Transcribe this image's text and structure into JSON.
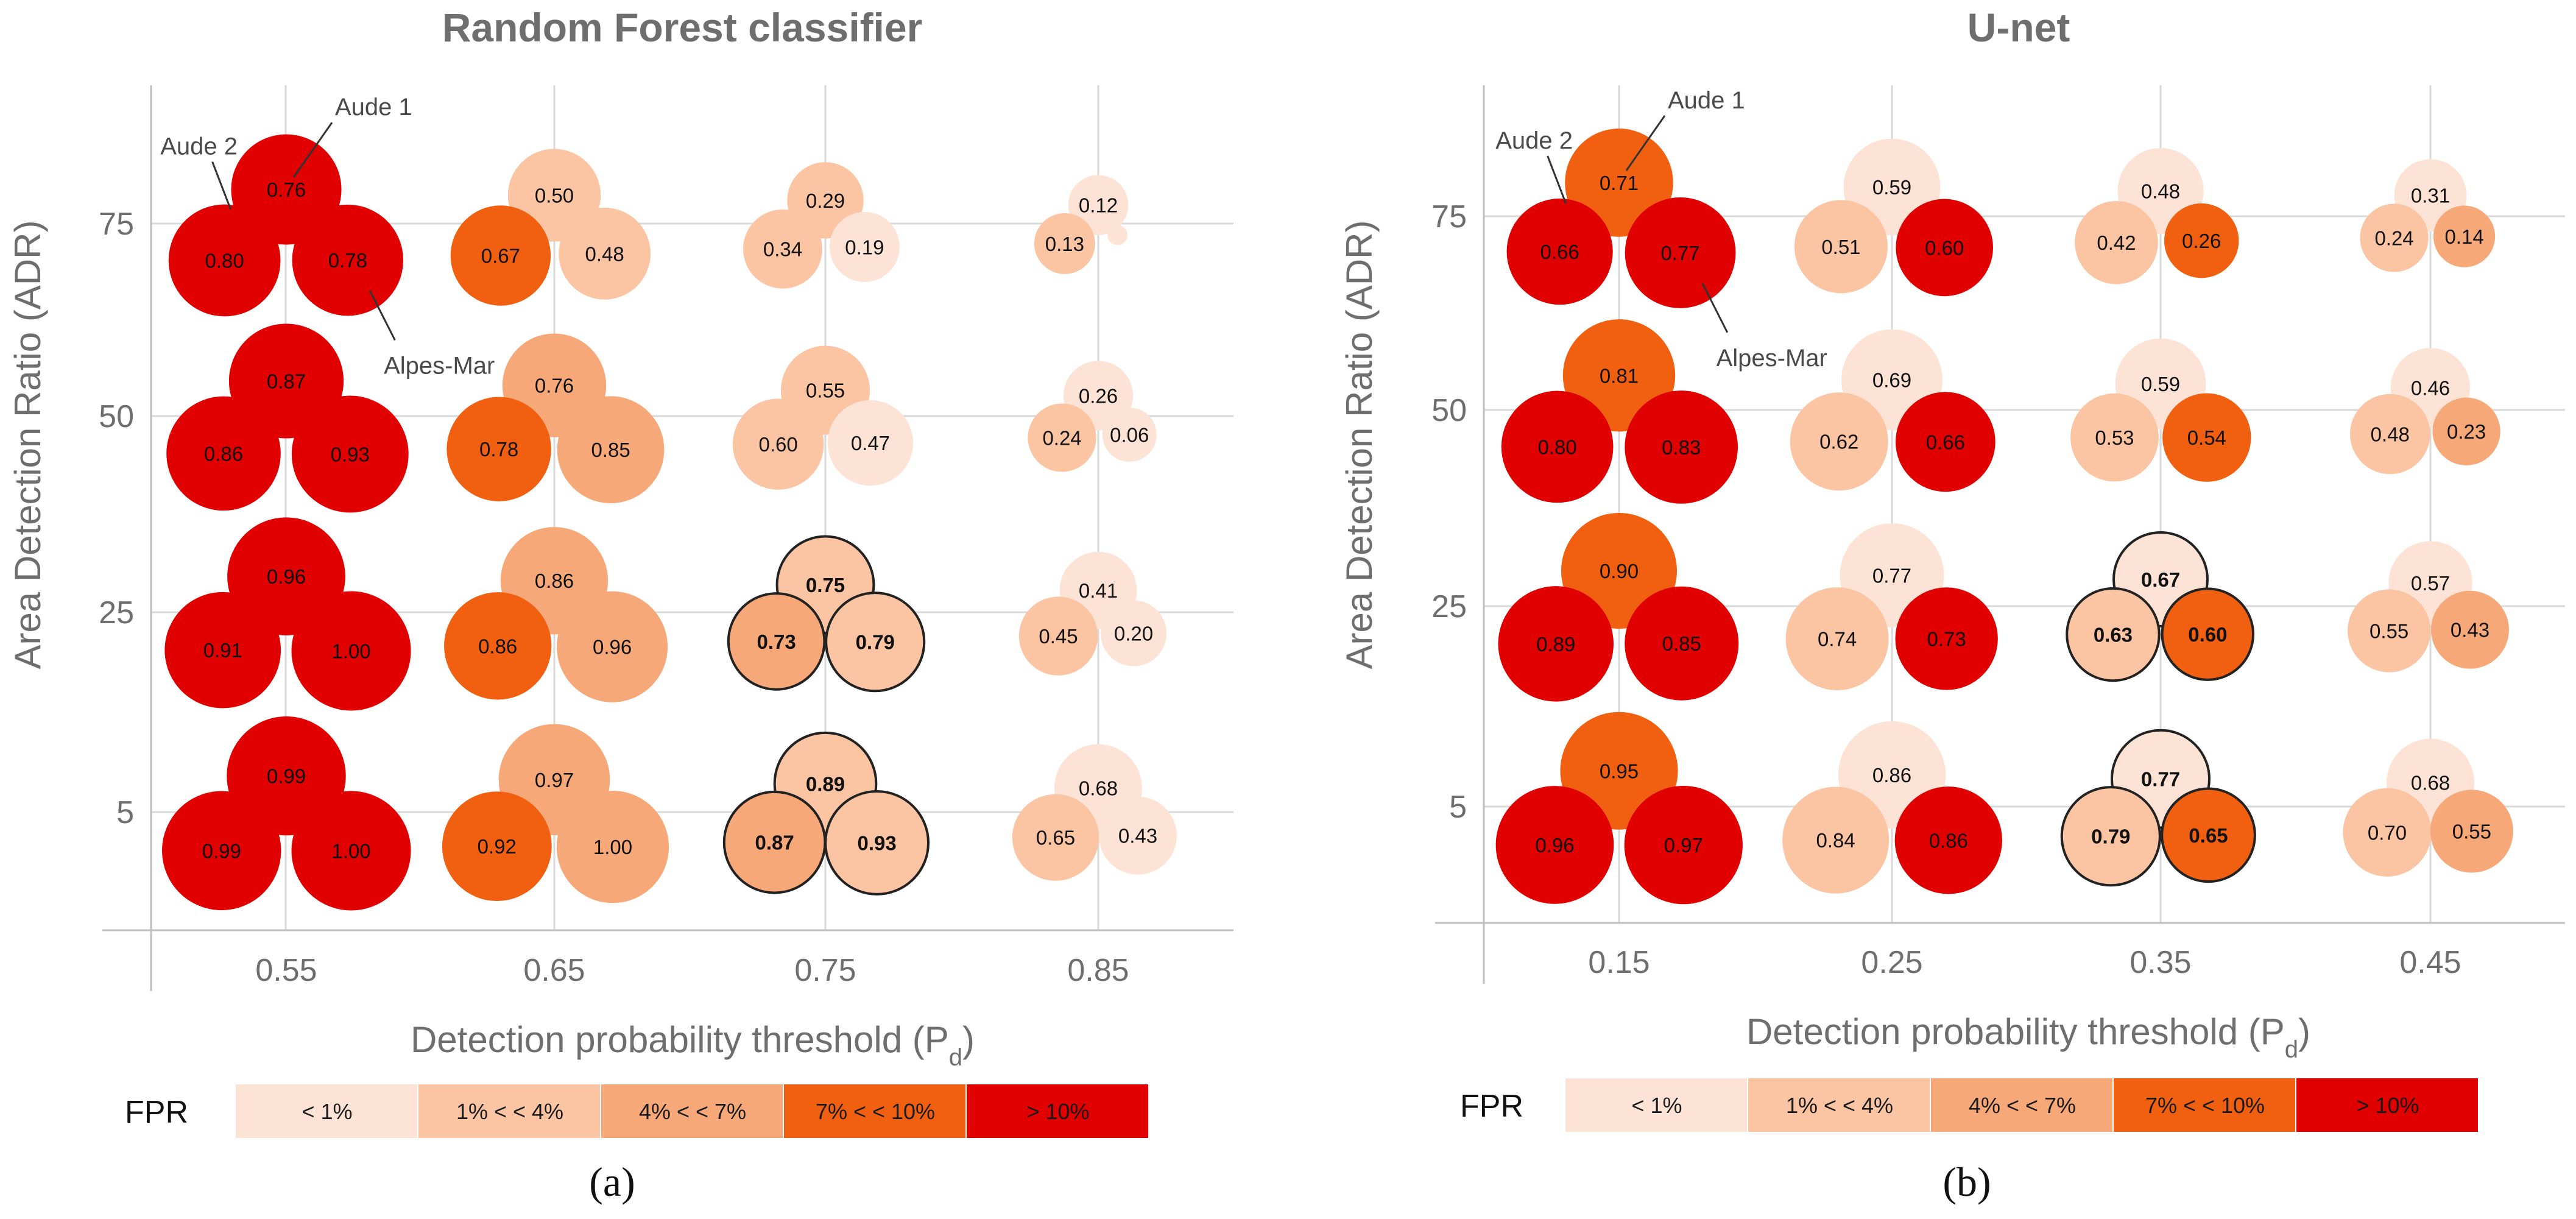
{
  "colors": {
    "lt1": "#fde3d5",
    "b1_4": "#fbc4a3",
    "b4_7": "#f7a879",
    "b7_10": "#f06010",
    "gt10": "#e00000"
  },
  "chart_data": [
    {
      "type": "bubble",
      "panel": "(a)",
      "title": "Random Forest classifier",
      "xlabel": "Detection probability threshold (P",
      "xlabel_sub": "d",
      "xlabel_close": ")",
      "ylabel": "Area Detection Ratio (ADR)",
      "x_ticks": [
        "0.55",
        "0.65",
        "0.75",
        "0.85"
      ],
      "y_ticks": [
        "75",
        "50",
        "25",
        "5"
      ],
      "sites": [
        "Aude 1",
        "Aude 2",
        "Alpes-Mar"
      ],
      "annotations": [
        "Aude 1",
        "Aude 2",
        "Alpes-Mar"
      ],
      "points": [
        {
          "pd": "0.55",
          "adr": "75",
          "site": "Aude 1",
          "value": "0.76",
          "fpr": "gt10",
          "circled": false
        },
        {
          "pd": "0.55",
          "adr": "75",
          "site": "Aude 2",
          "value": "0.80",
          "fpr": "gt10",
          "circled": false
        },
        {
          "pd": "0.55",
          "adr": "75",
          "site": "Alpes-Mar",
          "value": "0.78",
          "fpr": "gt10",
          "circled": false
        },
        {
          "pd": "0.55",
          "adr": "50",
          "site": "Aude 1",
          "value": "0.87",
          "fpr": "gt10",
          "circled": false
        },
        {
          "pd": "0.55",
          "adr": "50",
          "site": "Aude 2",
          "value": "0.86",
          "fpr": "gt10",
          "circled": false
        },
        {
          "pd": "0.55",
          "adr": "50",
          "site": "Alpes-Mar",
          "value": "0.93",
          "fpr": "gt10",
          "circled": false
        },
        {
          "pd": "0.55",
          "adr": "25",
          "site": "Aude 1",
          "value": "0.96",
          "fpr": "gt10",
          "circled": false
        },
        {
          "pd": "0.55",
          "adr": "25",
          "site": "Aude 2",
          "value": "0.91",
          "fpr": "gt10",
          "circled": false
        },
        {
          "pd": "0.55",
          "adr": "25",
          "site": "Alpes-Mar",
          "value": "1.00",
          "fpr": "gt10",
          "circled": false
        },
        {
          "pd": "0.55",
          "adr": "5",
          "site": "Aude 1",
          "value": "0.99",
          "fpr": "gt10",
          "circled": false
        },
        {
          "pd": "0.55",
          "adr": "5",
          "site": "Aude 2",
          "value": "0.99",
          "fpr": "gt10",
          "circled": false
        },
        {
          "pd": "0.55",
          "adr": "5",
          "site": "Alpes-Mar",
          "value": "1.00",
          "fpr": "gt10",
          "circled": false
        },
        {
          "pd": "0.65",
          "adr": "75",
          "site": "Aude 1",
          "value": "0.50",
          "fpr": "b1_4",
          "circled": false
        },
        {
          "pd": "0.65",
          "adr": "75",
          "site": "Aude 2",
          "value": "0.67",
          "fpr": "b7_10",
          "circled": false
        },
        {
          "pd": "0.65",
          "adr": "75",
          "site": "Alpes-Mar",
          "value": "0.48",
          "fpr": "b1_4",
          "circled": false
        },
        {
          "pd": "0.65",
          "adr": "50",
          "site": "Aude 1",
          "value": "0.76",
          "fpr": "b4_7",
          "circled": false
        },
        {
          "pd": "0.65",
          "adr": "50",
          "site": "Aude 2",
          "value": "0.78",
          "fpr": "b7_10",
          "circled": false
        },
        {
          "pd": "0.65",
          "adr": "50",
          "site": "Alpes-Mar",
          "value": "0.85",
          "fpr": "b4_7",
          "circled": false
        },
        {
          "pd": "0.65",
          "adr": "25",
          "site": "Aude 1",
          "value": "0.86",
          "fpr": "b4_7",
          "circled": false
        },
        {
          "pd": "0.65",
          "adr": "25",
          "site": "Aude 2",
          "value": "0.86",
          "fpr": "b7_10",
          "circled": false
        },
        {
          "pd": "0.65",
          "adr": "25",
          "site": "Alpes-Mar",
          "value": "0.96",
          "fpr": "b4_7",
          "circled": false
        },
        {
          "pd": "0.65",
          "adr": "5",
          "site": "Aude 1",
          "value": "0.97",
          "fpr": "b4_7",
          "circled": false
        },
        {
          "pd": "0.65",
          "adr": "5",
          "site": "Aude 2",
          "value": "0.92",
          "fpr": "b7_10",
          "circled": false
        },
        {
          "pd": "0.65",
          "adr": "5",
          "site": "Alpes-Mar",
          "value": "1.00",
          "fpr": "b4_7",
          "circled": false
        },
        {
          "pd": "0.75",
          "adr": "75",
          "site": "Aude 1",
          "value": "0.29",
          "fpr": "b1_4",
          "circled": false
        },
        {
          "pd": "0.75",
          "adr": "75",
          "site": "Aude 2",
          "value": "0.34",
          "fpr": "b1_4",
          "circled": false
        },
        {
          "pd": "0.75",
          "adr": "75",
          "site": "Alpes-Mar",
          "value": "0.19",
          "fpr": "lt1",
          "circled": false
        },
        {
          "pd": "0.75",
          "adr": "50",
          "site": "Aude 1",
          "value": "0.55",
          "fpr": "b1_4",
          "circled": false
        },
        {
          "pd": "0.75",
          "adr": "50",
          "site": "Aude 2",
          "value": "0.60",
          "fpr": "b1_4",
          "circled": false
        },
        {
          "pd": "0.75",
          "adr": "50",
          "site": "Alpes-Mar",
          "value": "0.47",
          "fpr": "lt1",
          "circled": false
        },
        {
          "pd": "0.75",
          "adr": "25",
          "site": "Aude 1",
          "value": "0.75",
          "fpr": "b1_4",
          "circled": true
        },
        {
          "pd": "0.75",
          "adr": "25",
          "site": "Aude 2",
          "value": "0.73",
          "fpr": "b4_7",
          "circled": true
        },
        {
          "pd": "0.75",
          "adr": "25",
          "site": "Alpes-Mar",
          "value": "0.79",
          "fpr": "b1_4",
          "circled": true
        },
        {
          "pd": "0.75",
          "adr": "5",
          "site": "Aude 1",
          "value": "0.89",
          "fpr": "b1_4",
          "circled": true
        },
        {
          "pd": "0.75",
          "adr": "5",
          "site": "Aude 2",
          "value": "0.87",
          "fpr": "b4_7",
          "circled": true
        },
        {
          "pd": "0.75",
          "adr": "5",
          "site": "Alpes-Mar",
          "value": "0.93",
          "fpr": "b1_4",
          "circled": true
        },
        {
          "pd": "0.85",
          "adr": "75",
          "site": "Aude 1",
          "value": "0.12",
          "fpr": "lt1",
          "circled": false
        },
        {
          "pd": "0.85",
          "adr": "75",
          "site": "Aude 2",
          "value": "0.13",
          "fpr": "b1_4",
          "circled": false
        },
        {
          "pd": "0.85",
          "adr": "75",
          "site": "Alpes-Mar",
          "value": "",
          "fpr": "lt1",
          "circled": false
        },
        {
          "pd": "0.85",
          "adr": "50",
          "site": "Aude 1",
          "value": "0.26",
          "fpr": "lt1",
          "circled": false
        },
        {
          "pd": "0.85",
          "adr": "50",
          "site": "Aude 2",
          "value": "0.24",
          "fpr": "b1_4",
          "circled": false
        },
        {
          "pd": "0.85",
          "adr": "50",
          "site": "Alpes-Mar",
          "value": "0.06",
          "fpr": "lt1",
          "circled": false
        },
        {
          "pd": "0.85",
          "adr": "25",
          "site": "Aude 1",
          "value": "0.41",
          "fpr": "lt1",
          "circled": false
        },
        {
          "pd": "0.85",
          "adr": "25",
          "site": "Aude 2",
          "value": "0.45",
          "fpr": "b1_4",
          "circled": false
        },
        {
          "pd": "0.85",
          "adr": "25",
          "site": "Alpes-Mar",
          "value": "0.20",
          "fpr": "lt1",
          "circled": false
        },
        {
          "pd": "0.85",
          "adr": "5",
          "site": "Aude 1",
          "value": "0.68",
          "fpr": "lt1",
          "circled": false
        },
        {
          "pd": "0.85",
          "adr": "5",
          "site": "Aude 2",
          "value": "0.65",
          "fpr": "b1_4",
          "circled": false
        },
        {
          "pd": "0.85",
          "adr": "5",
          "site": "Alpes-Mar",
          "value": "0.43",
          "fpr": "lt1",
          "circled": false
        }
      ],
      "legend": {
        "label": "FPR",
        "items": [
          {
            "key": "lt1",
            "label": "< 1%"
          },
          {
            "key": "b1_4",
            "label": "1% <  < 4%"
          },
          {
            "key": "b4_7",
            "label": "4% <  < 7%"
          },
          {
            "key": "b7_10",
            "label": "7% <  < 10%"
          },
          {
            "key": "gt10",
            "label": "> 10%"
          }
        ]
      }
    },
    {
      "type": "bubble",
      "panel": "(b)",
      "title": "U-net",
      "xlabel": "Detection probability threshold (P",
      "xlabel_sub": "d",
      "xlabel_close": ")",
      "ylabel": "Area Detection Ratio (ADR)",
      "x_ticks": [
        "0.15",
        "0.25",
        "0.35",
        "0.45"
      ],
      "y_ticks": [
        "75",
        "50",
        "25",
        "5"
      ],
      "sites": [
        "Aude 1",
        "Aude 2",
        "Alpes-Mar"
      ],
      "annotations": [
        "Aude 1",
        "Aude 2",
        "Alpes-Mar"
      ],
      "points": [
        {
          "pd": "0.15",
          "adr": "75",
          "site": "Aude 1",
          "value": "0.71",
          "fpr": "b7_10",
          "circled": false
        },
        {
          "pd": "0.15",
          "adr": "75",
          "site": "Aude 2",
          "value": "0.66",
          "fpr": "gt10",
          "circled": false
        },
        {
          "pd": "0.15",
          "adr": "75",
          "site": "Alpes-Mar",
          "value": "0.77",
          "fpr": "gt10",
          "circled": false
        },
        {
          "pd": "0.15",
          "adr": "50",
          "site": "Aude 1",
          "value": "0.81",
          "fpr": "b7_10",
          "circled": false
        },
        {
          "pd": "0.15",
          "adr": "50",
          "site": "Aude 2",
          "value": "0.80",
          "fpr": "gt10",
          "circled": false
        },
        {
          "pd": "0.15",
          "adr": "50",
          "site": "Alpes-Mar",
          "value": "0.83",
          "fpr": "gt10",
          "circled": false
        },
        {
          "pd": "0.15",
          "adr": "25",
          "site": "Aude 1",
          "value": "0.90",
          "fpr": "b7_10",
          "circled": false
        },
        {
          "pd": "0.15",
          "adr": "25",
          "site": "Aude 2",
          "value": "0.89",
          "fpr": "gt10",
          "circled": false
        },
        {
          "pd": "0.15",
          "adr": "25",
          "site": "Alpes-Mar",
          "value": "0.85",
          "fpr": "gt10",
          "circled": false
        },
        {
          "pd": "0.15",
          "adr": "5",
          "site": "Aude 1",
          "value": "0.95",
          "fpr": "b7_10",
          "circled": false
        },
        {
          "pd": "0.15",
          "adr": "5",
          "site": "Aude 2",
          "value": "0.96",
          "fpr": "gt10",
          "circled": false
        },
        {
          "pd": "0.15",
          "adr": "5",
          "site": "Alpes-Mar",
          "value": "0.97",
          "fpr": "gt10",
          "circled": false
        },
        {
          "pd": "0.25",
          "adr": "75",
          "site": "Aude 1",
          "value": "0.59",
          "fpr": "lt1",
          "circled": false
        },
        {
          "pd": "0.25",
          "adr": "75",
          "site": "Aude 2",
          "value": "0.51",
          "fpr": "b1_4",
          "circled": false
        },
        {
          "pd": "0.25",
          "adr": "75",
          "site": "Alpes-Mar",
          "value": "0.60",
          "fpr": "gt10",
          "circled": false
        },
        {
          "pd": "0.25",
          "adr": "50",
          "site": "Aude 1",
          "value": "0.69",
          "fpr": "lt1",
          "circled": false
        },
        {
          "pd": "0.25",
          "adr": "50",
          "site": "Aude 2",
          "value": "0.62",
          "fpr": "b1_4",
          "circled": false
        },
        {
          "pd": "0.25",
          "adr": "50",
          "site": "Alpes-Mar",
          "value": "0.66",
          "fpr": "gt10",
          "circled": false
        },
        {
          "pd": "0.25",
          "adr": "25",
          "site": "Aude 1",
          "value": "0.77",
          "fpr": "lt1",
          "circled": false
        },
        {
          "pd": "0.25",
          "adr": "25",
          "site": "Aude 2",
          "value": "0.74",
          "fpr": "b1_4",
          "circled": false
        },
        {
          "pd": "0.25",
          "adr": "25",
          "site": "Alpes-Mar",
          "value": "0.73",
          "fpr": "gt10",
          "circled": false
        },
        {
          "pd": "0.25",
          "adr": "5",
          "site": "Aude 1",
          "value": "0.86",
          "fpr": "lt1",
          "circled": false
        },
        {
          "pd": "0.25",
          "adr": "5",
          "site": "Aude 2",
          "value": "0.84",
          "fpr": "b1_4",
          "circled": false
        },
        {
          "pd": "0.25",
          "adr": "5",
          "site": "Alpes-Mar",
          "value": "0.86",
          "fpr": "gt10",
          "circled": false
        },
        {
          "pd": "0.35",
          "adr": "75",
          "site": "Aude 1",
          "value": "0.48",
          "fpr": "lt1",
          "circled": false
        },
        {
          "pd": "0.35",
          "adr": "75",
          "site": "Aude 2",
          "value": "0.42",
          "fpr": "b1_4",
          "circled": false
        },
        {
          "pd": "0.35",
          "adr": "75",
          "site": "Alpes-Mar",
          "value": "0.26",
          "fpr": "b7_10",
          "circled": false
        },
        {
          "pd": "0.35",
          "adr": "50",
          "site": "Aude 1",
          "value": "0.59",
          "fpr": "lt1",
          "circled": false
        },
        {
          "pd": "0.35",
          "adr": "50",
          "site": "Aude 2",
          "value": "0.53",
          "fpr": "b1_4",
          "circled": false
        },
        {
          "pd": "0.35",
          "adr": "50",
          "site": "Alpes-Mar",
          "value": "0.54",
          "fpr": "b7_10",
          "circled": false
        },
        {
          "pd": "0.35",
          "adr": "25",
          "site": "Aude 1",
          "value": "0.67",
          "fpr": "lt1",
          "circled": true
        },
        {
          "pd": "0.35",
          "adr": "25",
          "site": "Aude 2",
          "value": "0.63",
          "fpr": "b1_4",
          "circled": true
        },
        {
          "pd": "0.35",
          "adr": "25",
          "site": "Alpes-Mar",
          "value": "0.60",
          "fpr": "b7_10",
          "circled": true
        },
        {
          "pd": "0.35",
          "adr": "5",
          "site": "Aude 1",
          "value": "0.77",
          "fpr": "lt1",
          "circled": true
        },
        {
          "pd": "0.35",
          "adr": "5",
          "site": "Aude 2",
          "value": "0.79",
          "fpr": "b1_4",
          "circled": true
        },
        {
          "pd": "0.35",
          "adr": "5",
          "site": "Alpes-Mar",
          "value": "0.65",
          "fpr": "b7_10",
          "circled": true
        },
        {
          "pd": "0.45",
          "adr": "75",
          "site": "Aude 1",
          "value": "0.31",
          "fpr": "lt1",
          "circled": false
        },
        {
          "pd": "0.45",
          "adr": "75",
          "site": "Aude 2",
          "value": "0.24",
          "fpr": "b1_4",
          "circled": false
        },
        {
          "pd": "0.45",
          "adr": "75",
          "site": "Alpes-Mar",
          "value": "0.14",
          "fpr": "b4_7",
          "circled": false
        },
        {
          "pd": "0.45",
          "adr": "50",
          "site": "Aude 1",
          "value": "0.46",
          "fpr": "lt1",
          "circled": false
        },
        {
          "pd": "0.45",
          "adr": "50",
          "site": "Aude 2",
          "value": "0.48",
          "fpr": "b1_4",
          "circled": false
        },
        {
          "pd": "0.45",
          "adr": "50",
          "site": "Alpes-Mar",
          "value": "0.23",
          "fpr": "b4_7",
          "circled": false
        },
        {
          "pd": "0.45",
          "adr": "25",
          "site": "Aude 1",
          "value": "0.57",
          "fpr": "lt1",
          "circled": false
        },
        {
          "pd": "0.45",
          "adr": "25",
          "site": "Aude 2",
          "value": "0.55",
          "fpr": "b1_4",
          "circled": false
        },
        {
          "pd": "0.45",
          "adr": "25",
          "site": "Alpes-Mar",
          "value": "0.43",
          "fpr": "b4_7",
          "circled": false
        },
        {
          "pd": "0.45",
          "adr": "5",
          "site": "Aude 1",
          "value": "0.68",
          "fpr": "lt1",
          "circled": false
        },
        {
          "pd": "0.45",
          "adr": "5",
          "site": "Aude 2",
          "value": "0.70",
          "fpr": "b1_4",
          "circled": false
        },
        {
          "pd": "0.45",
          "adr": "5",
          "site": "Alpes-Mar",
          "value": "0.55",
          "fpr": "b4_7",
          "circled": false
        }
      ],
      "legend": {
        "label": "FPR",
        "items": [
          {
            "key": "lt1",
            "label": "< 1%"
          },
          {
            "key": "b1_4",
            "label": "1% <  < 4%"
          },
          {
            "key": "b4_7",
            "label": "4% <  < 7%"
          },
          {
            "key": "b7_10",
            "label": "7% <  < 10%"
          },
          {
            "key": "gt10",
            "label": "> 10%"
          }
        ]
      }
    }
  ]
}
